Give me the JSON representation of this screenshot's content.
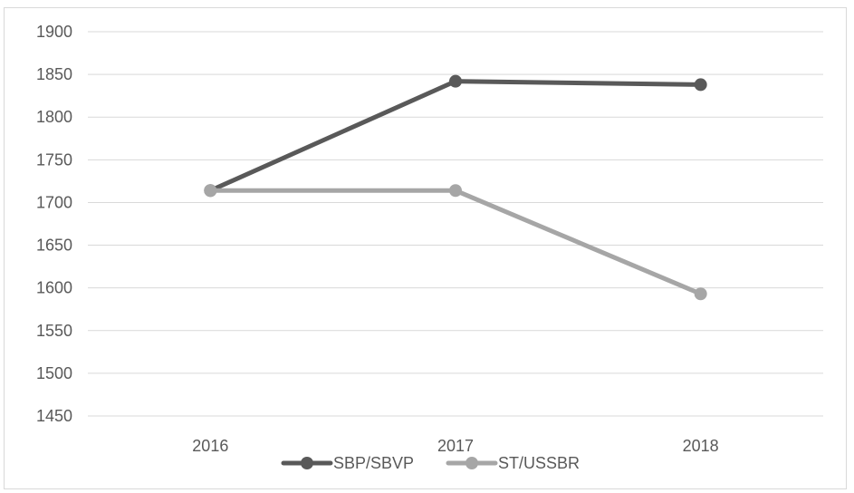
{
  "chart_data": {
    "type": "line",
    "categories": [
      "2016",
      "2017",
      "2018"
    ],
    "series": [
      {
        "name": "SBP/SBVP",
        "values": [
          1714,
          1842,
          1838
        ],
        "color": "#595959"
      },
      {
        "name": "ST/USSBR",
        "values": [
          1714,
          1714,
          1593
        ],
        "color": "#a6a6a6"
      }
    ],
    "ylim": [
      1450,
      1900
    ],
    "yticks": [
      "1450",
      "1500",
      "1550",
      "1600",
      "1650",
      "1700",
      "1750",
      "1800",
      "1850",
      "1900"
    ],
    "grid": true,
    "legend_position": "bottom"
  }
}
